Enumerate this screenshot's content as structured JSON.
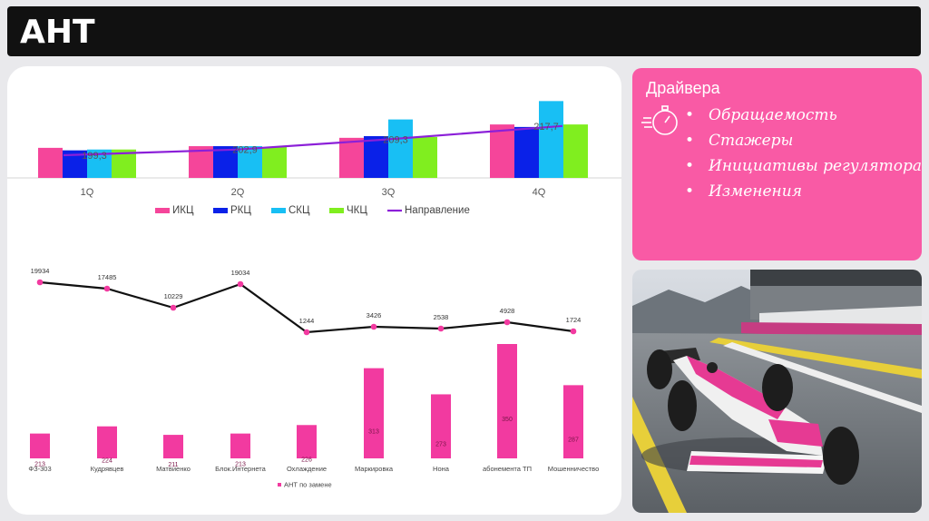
{
  "header": {
    "title": "АНТ"
  },
  "drivers": {
    "title": "Драйвера",
    "items": [
      "Обращаемость",
      "Стажеры",
      "Инициативы регулятора",
      "Изменения"
    ]
  },
  "colors": {
    "ikc": "#f5459a",
    "rkc": "#0a21e8",
    "skc": "#18bff4",
    "chkc": "#80ee1f",
    "trend": "#8b1fd8",
    "pink": "#f23aa0",
    "panel": "#f95aa5"
  },
  "chart_data": [
    {
      "type": "bar",
      "categories": [
        "1Q",
        "2Q",
        "3Q",
        "4Q"
      ],
      "series": [
        {
          "name": "ИКЦ",
          "values": [
            36,
            38,
            48,
            64
          ]
        },
        {
          "name": "РКЦ",
          "values": [
            33,
            38,
            50,
            61
          ]
        },
        {
          "name": "СКЦ",
          "values": [
            34,
            38,
            70,
            92
          ]
        },
        {
          "name": "ЧКЦ",
          "values": [
            34,
            37,
            49,
            64
          ]
        }
      ],
      "line": {
        "name": "Направление",
        "values": [
          199.3,
          202.9,
          209.3,
          217.7
        ],
        "labels": [
          "199,3",
          "202,9",
          "209,3",
          "217,7"
        ]
      },
      "ylim": [
        0,
        100
      ],
      "legend": "bottom"
    },
    {
      "type": "bar",
      "categories": [
        "ФЗ-303",
        "Кудрявцев",
        "Матвиенко",
        "Блок.Интернета",
        "Охлаждение",
        "Маркировка",
        "Нона",
        "абонемента ТП",
        "Мошенничество"
      ],
      "series": [
        {
          "name": "АНТ по замене",
          "values": [
            213,
            224,
            211,
            213,
            226,
            313,
            273,
            350,
            287
          ]
        }
      ],
      "line": {
        "values": [
          19934,
          17485,
          10229,
          19034,
          1244,
          3426,
          2538,
          4928,
          1724
        ],
        "labels": [
          "19934",
          "17485",
          "10229",
          "19034",
          "1244",
          "3426",
          "2538",
          "4928",
          "1724"
        ]
      },
      "legend": "bottom"
    }
  ]
}
